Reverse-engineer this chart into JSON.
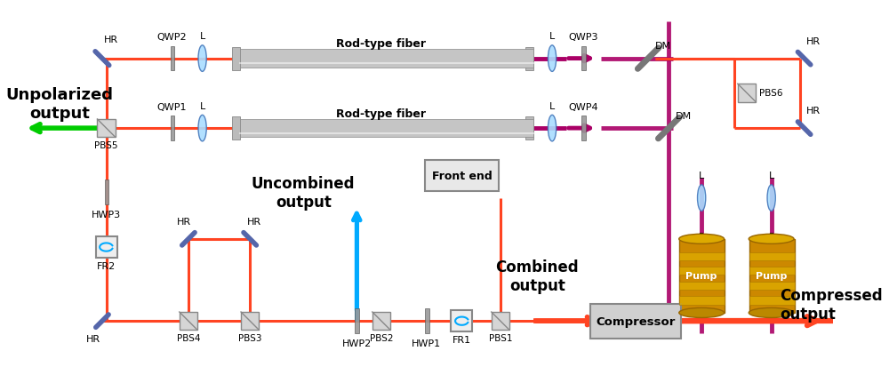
{
  "figsize": [
    10.0,
    4.14
  ],
  "dpi": 100,
  "bg_color": "#ffffff",
  "RED": "#FF4422",
  "BLUE": "#00AAFF",
  "GREEN": "#00CC00",
  "PURPLE": "#AA0066",
  "SGRAY": "#5566AA",
  "DGRAY": "#888888",
  "GOLD": "#CC8800",
  "lw_beam": 2.2,
  "lw_thick": 3.5,
  "labels": {
    "rod_fiber": "Rod-type fiber",
    "unpolarized": "Unpolarized\noutput",
    "uncombined": "Uncombined\noutput",
    "combined": "Combined\noutput",
    "compressed": "Compressed\noutput",
    "front_end": "Front end",
    "compressor": "Compressor",
    "pump": "Pump"
  }
}
